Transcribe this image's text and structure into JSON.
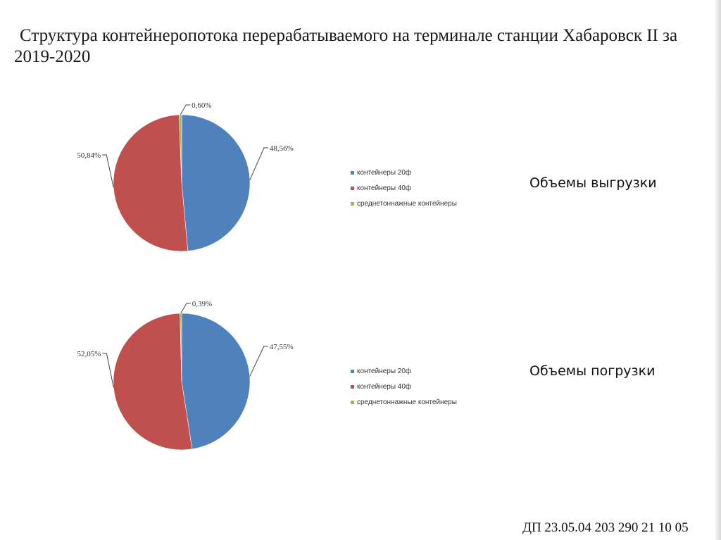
{
  "title": "Структура контейнеропотока перерабатываемого на терминале станции Хабаровск II за 2019-2020",
  "colors": {
    "blue": "#4f81bd",
    "red": "#c0504d",
    "green": "#9bbb59"
  },
  "chart_data": [
    {
      "type": "pie",
      "categories": [
        "контейнеры 20ф",
        "контейнеры 40ф",
        "среднетоннажные контейнеры"
      ],
      "values": [
        48.56,
        50.84,
        0.6
      ],
      "labels": [
        "48,56%",
        "50,84%",
        "0,60%"
      ],
      "legend_position": "right"
    },
    {
      "type": "pie",
      "categories": [
        "контейнеры 20ф",
        "контейнеры 40ф",
        "среднетоннажные контейнеры"
      ],
      "values": [
        47.55,
        52.05,
        0.39
      ],
      "labels": [
        "47,55%",
        "52,05%",
        "0,39%"
      ],
      "legend_position": "right"
    }
  ],
  "captions": [
    "Объемы выгрузки",
    "Объемы погрузки"
  ],
  "footer": "ДП 23.05.04 203 290 21 10 05"
}
